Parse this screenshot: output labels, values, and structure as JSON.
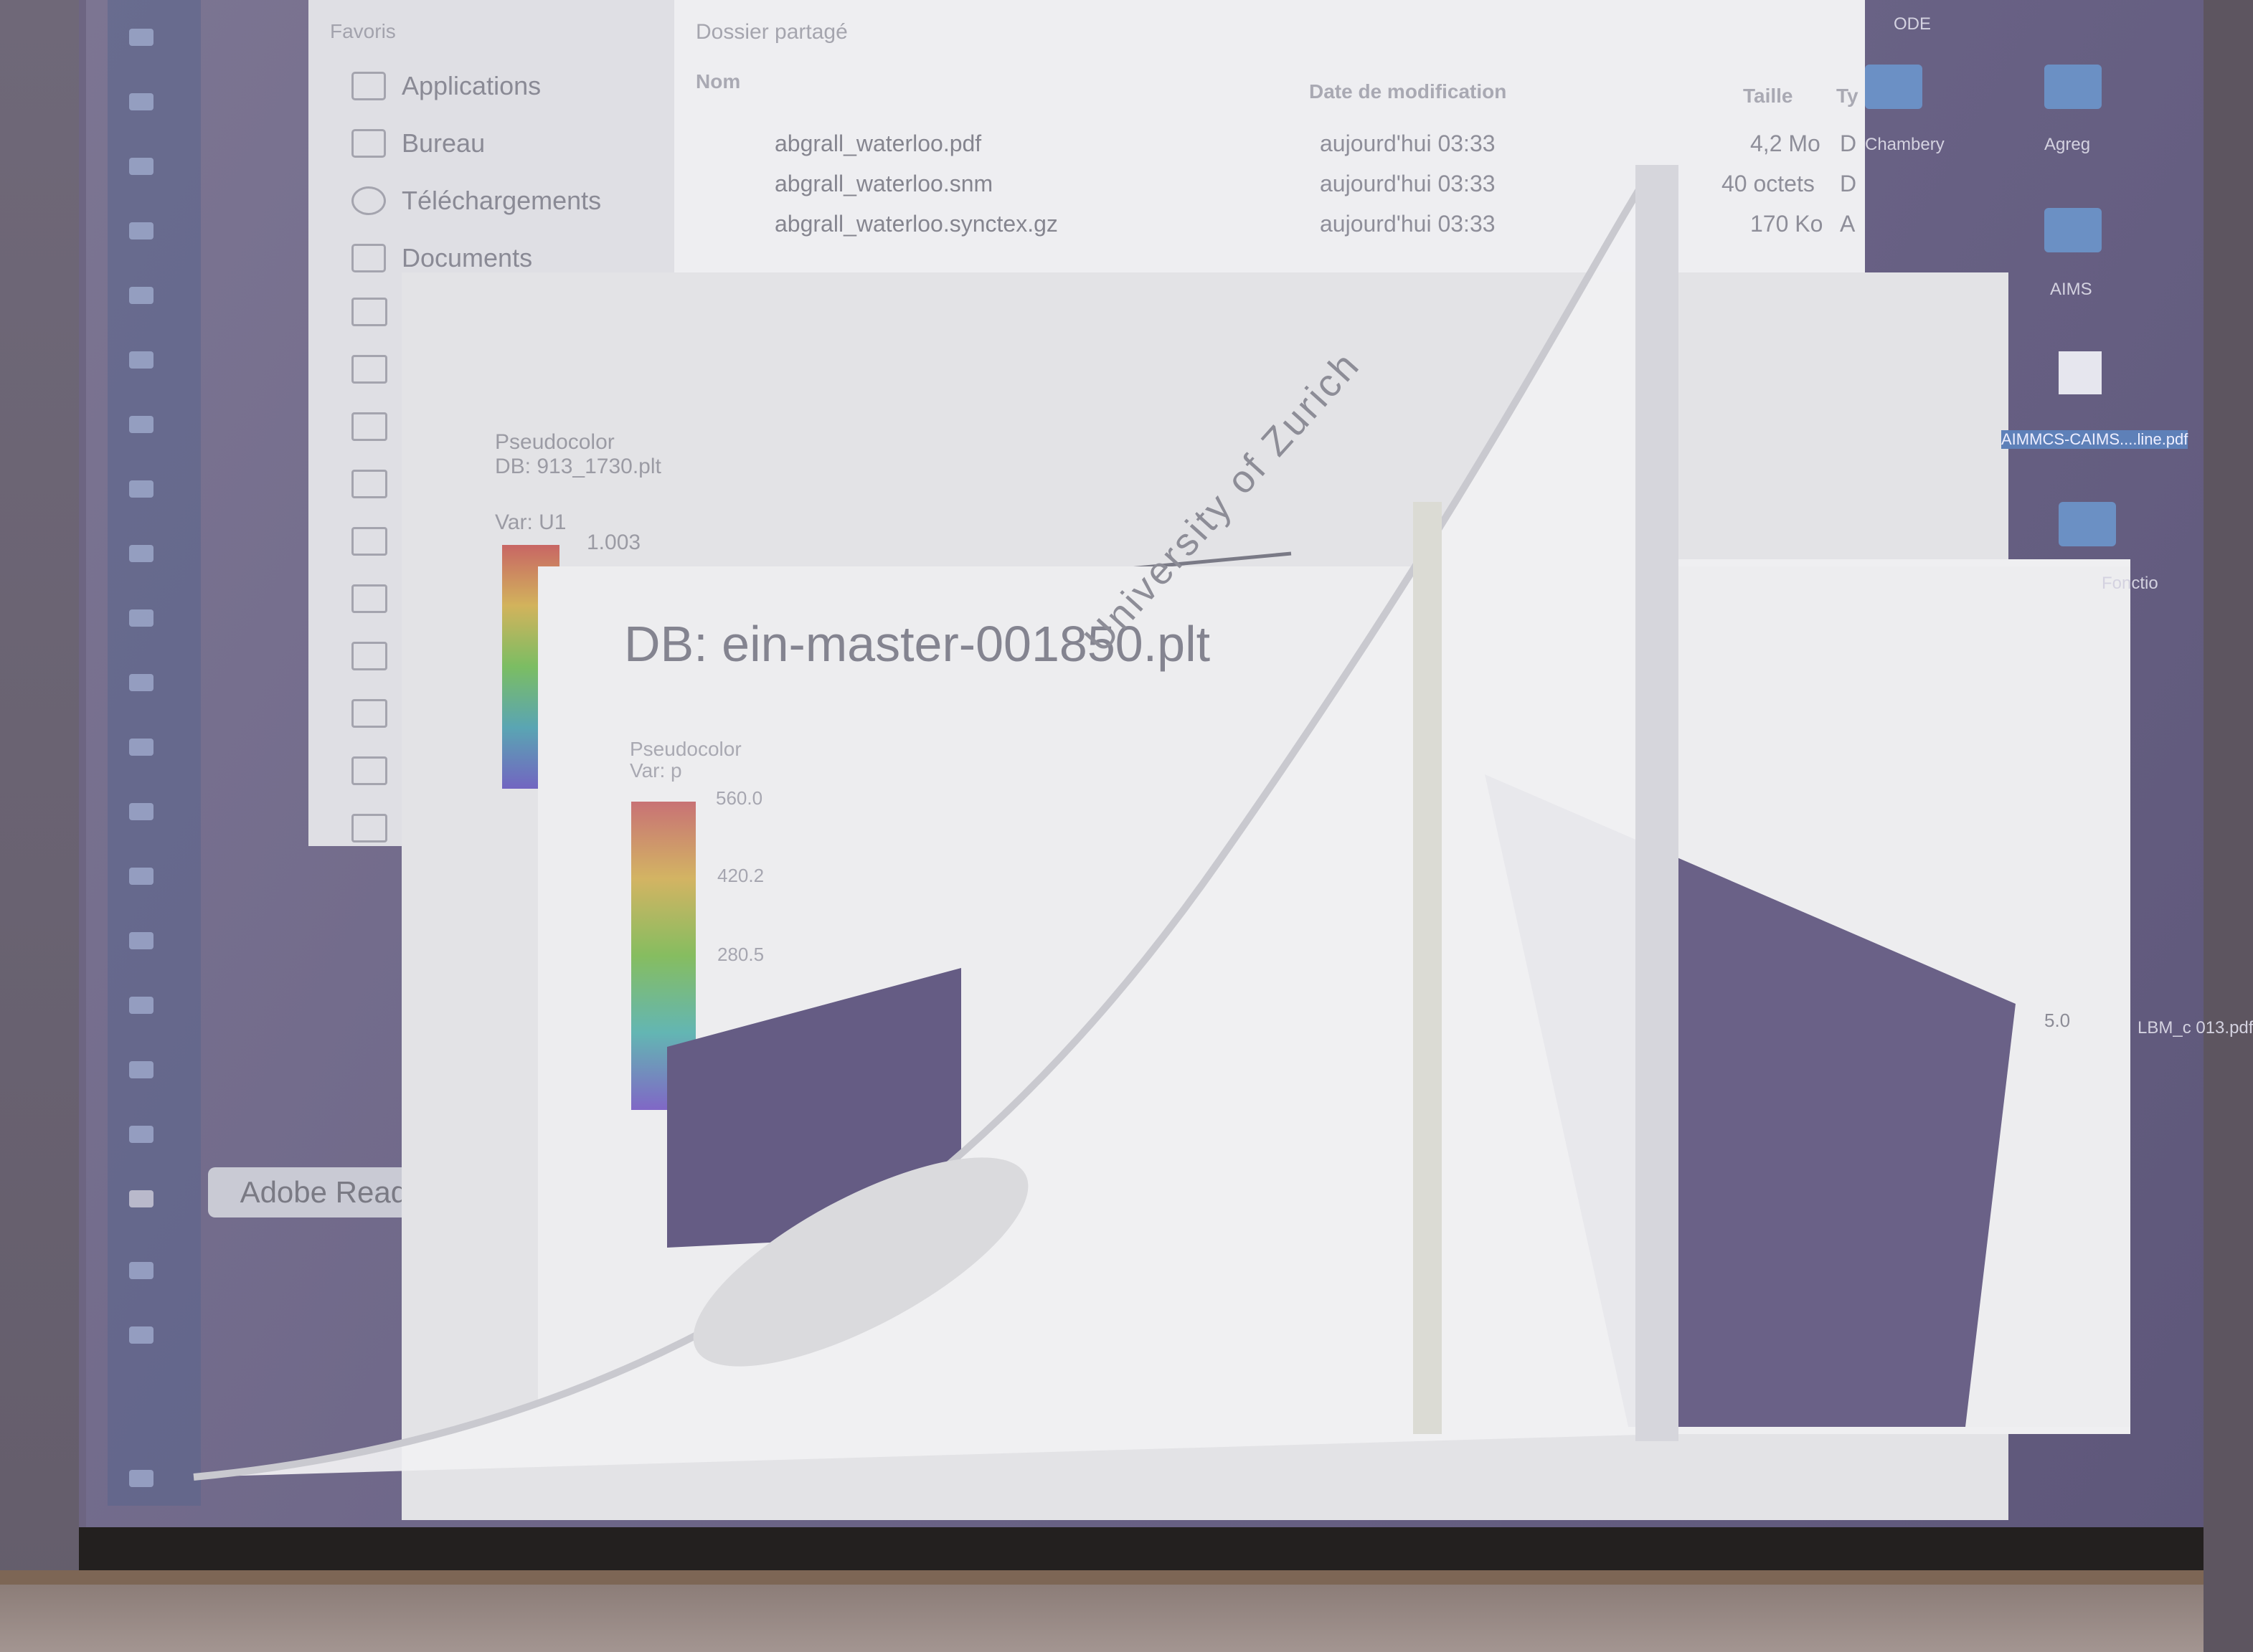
{
  "finder": {
    "sidebar": {
      "section": "Favoris",
      "items": [
        "Applications",
        "Bureau",
        "Téléchargements",
        "Documents"
      ]
    },
    "location": "Dossier partagé",
    "columns": {
      "name": "Nom",
      "date": "Date de modification",
      "size": "Taille",
      "type": "Ty"
    },
    "files": [
      {
        "name": "abgrall_waterloo.pdf",
        "date": "aujourd'hui 03:33",
        "size": "4,2 Mo",
        "type": "D"
      },
      {
        "name": "abgrall_waterloo.snm",
        "date": "aujourd'hui 03:33",
        "size": "40 octets",
        "type": "D"
      },
      {
        "name": "abgrall_waterloo.synctex.gz",
        "date": "aujourd'hui 03:33",
        "size": "170 Ko",
        "type": "A"
      }
    ]
  },
  "dock": {
    "tooltip": "Adobe Reader"
  },
  "visit_back": {
    "legend_type": "Pseudocolor",
    "legend_db": "DB: 913_1730.plt",
    "legend_var": "Var: U1",
    "legend_max_tick": "1.003"
  },
  "visit_front": {
    "title": "DB: ein-master-001850.plt",
    "legend_type": "Pseudocolor",
    "legend_var": "Var: p",
    "ticks": [
      "560.0",
      "420.2",
      "280.5"
    ],
    "axis_tick": "5.0"
  },
  "watermark": {
    "text": "University of Zurich"
  },
  "desktop_icons": [
    "ODE",
    "Chambery",
    "Agreg",
    "AIMS",
    "AIMMCS-CAIMS....line.pdf",
    "Fonctio",
    "LBM_c 013.pdf"
  ]
}
